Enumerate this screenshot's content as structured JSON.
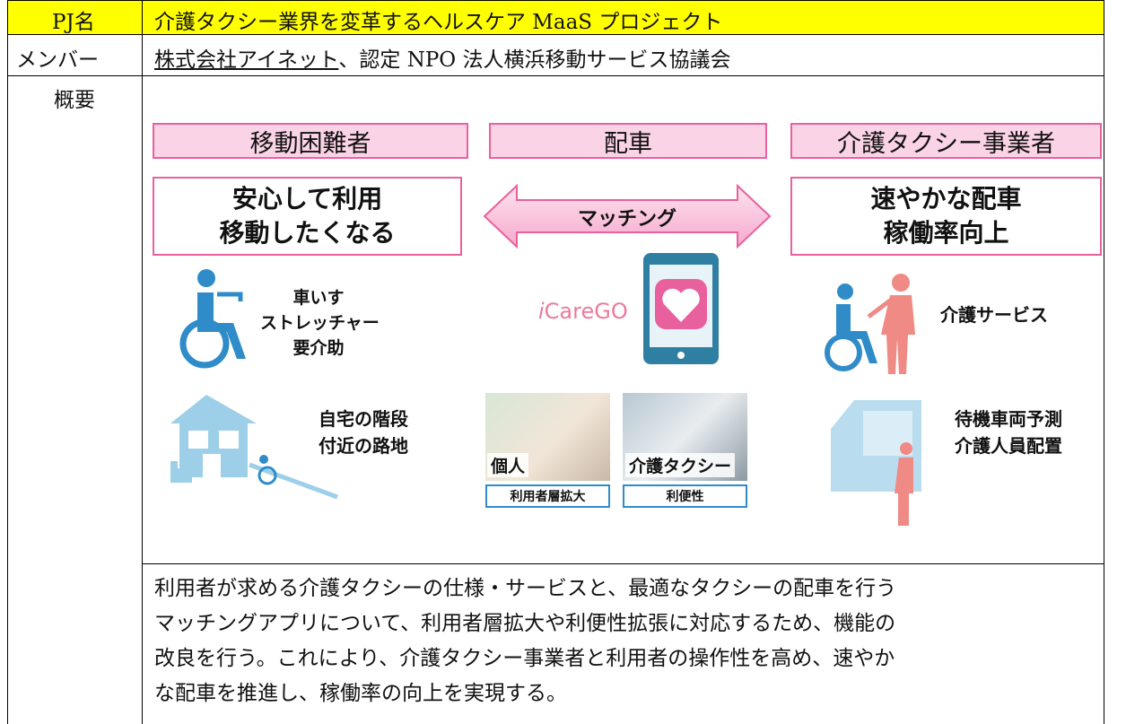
{
  "header": {
    "pj_label": "PJ名",
    "pj_title": "介護タクシー業界を変革するヘルスケア MaaS プロジェクト"
  },
  "members": {
    "label": "メンバー",
    "company": "株式会社アイネット",
    "rest": "、認定 NPO 法人横浜移動サービス協議会"
  },
  "overview": {
    "label": "概要",
    "diagram": {
      "columns": [
        "移動困難者",
        "配車",
        "介護タクシー事業者"
      ],
      "left_goal": [
        "安心して利用",
        "移動したくなる"
      ],
      "arrow": "マッチング",
      "right_goal": [
        "速やかな配車",
        "稼働率向上"
      ],
      "left_needs": [
        "車いす",
        "ストレッチャー",
        "要介助"
      ],
      "logo": "CareGO",
      "right_service": "介護サービス",
      "left_place": [
        "自宅の階段",
        "付近の路地"
      ],
      "photos": [
        {
          "caption": "個人",
          "label": "利用者層拡大"
        },
        {
          "caption": "介護タクシー",
          "label": "利便性"
        }
      ],
      "right_ops": [
        "待機車両予測",
        "介護人員配置"
      ]
    },
    "description": [
      "利用者が求める介護タクシーの仕様・サービスと、最適なタクシーの配車を行う",
      "マッチングアプリについて、利用者層拡大や利便性拡張に対応するため、機能の",
      "改良を行う。これにより、介護タクシー事業者と利用者の操作性を高め、速やか",
      "な配車を推進し、稼働率の向上を実現する。"
    ]
  }
}
